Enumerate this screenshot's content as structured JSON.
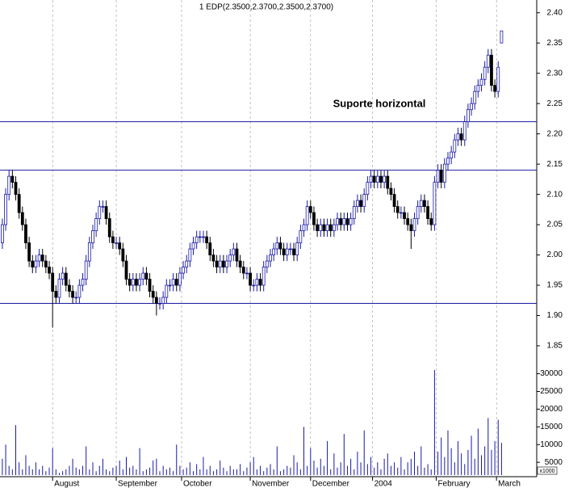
{
  "chart_data": {
    "type": "candlestick",
    "title": "1 EDP(2.3500,2.3700,2.3500,2.3700)",
    "annotation": "Suporte horizontal",
    "volume_unit": "x1000",
    "up_color": "#ffffff",
    "down_color": "#000000",
    "outline_color": "#1a1aa6",
    "line_color": "#1a1aa6",
    "annotation_color": "#1a1acc",
    "horizontal_lines": [
      1.92,
      2.14,
      2.22
    ],
    "xlim": [
      -0.7,
      159.5
    ],
    "xticks": [
      {
        "value": 15,
        "label": "August"
      },
      {
        "value": 34,
        "label": "September"
      },
      {
        "value": 53.5,
        "label": "October"
      },
      {
        "value": 74,
        "label": "November"
      },
      {
        "value": 92,
        "label": "December"
      },
      {
        "value": 110.5,
        "label": "2004"
      },
      {
        "value": 129.5,
        "label": "February"
      },
      {
        "value": 147.5,
        "label": "March"
      }
    ],
    "grid": true,
    "ylim": [
      1.834,
      2.421
    ],
    "yticks": [
      1.85,
      {
        "value": 1.9,
        "label": "1.90"
      },
      1.95,
      {
        "value": 2.0,
        "label": "2.00"
      },
      2.05,
      {
        "value": 2.1,
        "label": "2.10"
      },
      2.15,
      {
        "value": 2.2,
        "label": "2.20"
      },
      2.25,
      {
        "value": 2.3,
        "label": "2.30"
      },
      2.35,
      {
        "value": 2.4,
        "label": "2.40"
      }
    ],
    "volume_ylim": [
      1400,
      34000
    ],
    "volume_yticks": [
      5000,
      10000,
      15000,
      20000,
      25000,
      30000
    ],
    "open": [
      2.02,
      2.05,
      2.1,
      2.13,
      2.12,
      2.1,
      2.07,
      2.05,
      2.02,
      1.99,
      1.98,
      1.99,
      2.0,
      1.99,
      1.98,
      1.97,
      1.94,
      1.93,
      1.96,
      1.97,
      1.95,
      1.94,
      1.93,
      1.93,
      1.95,
      1.96,
      1.99,
      2.02,
      2.04,
      2.06,
      2.08,
      2.08,
      2.06,
      2.03,
      2.02,
      2.02,
      2.01,
      1.99,
      1.96,
      1.95,
      1.96,
      1.95,
      1.96,
      1.97,
      1.96,
      1.94,
      1.93,
      1.92,
      1.92,
      1.93,
      1.95,
      1.95,
      1.96,
      1.95,
      1.97,
      1.98,
      1.99,
      2.01,
      2.02,
      2.03,
      2.03,
      2.03,
      2.02,
      2.0,
      1.99,
      1.98,
      1.99,
      1.98,
      1.99,
      2.0,
      2.01,
      1.99,
      1.98,
      1.97,
      1.97,
      1.95,
      1.95,
      1.96,
      1.95,
      1.98,
      1.99,
      2.0,
      2.01,
      2.02,
      2.01,
      2.0,
      2.01,
      2.01,
      2.0,
      2.02,
      2.04,
      2.05,
      2.08,
      2.07,
      2.05,
      2.04,
      2.05,
      2.04,
      2.05,
      2.04,
      2.05,
      2.06,
      2.05,
      2.06,
      2.05,
      2.06,
      2.08,
      2.09,
      2.08,
      2.1,
      2.12,
      2.13,
      2.12,
      2.13,
      2.12,
      2.13,
      2.11,
      2.1,
      2.08,
      2.07,
      2.07,
      2.06,
      2.05,
      2.04,
      2.06,
      2.08,
      2.09,
      2.08,
      2.06,
      2.05,
      2.12,
      2.14,
      2.12,
      2.15,
      2.16,
      2.17,
      2.19,
      2.2,
      2.19,
      2.22,
      2.24,
      2.25,
      2.27,
      2.28,
      2.29,
      2.31,
      2.33,
      2.28,
      2.27,
      2.35
    ],
    "high": [
      2.06,
      2.11,
      2.14,
      2.14,
      2.13,
      2.11,
      2.08,
      2.06,
      2.03,
      2.0,
      2.0,
      2.01,
      2.01,
      2.0,
      1.99,
      1.98,
      1.95,
      1.97,
      1.98,
      1.98,
      1.96,
      1.95,
      1.94,
      1.96,
      1.97,
      2.0,
      2.03,
      2.05,
      2.07,
      2.09,
      2.09,
      2.09,
      2.07,
      2.04,
      2.03,
      2.03,
      2.02,
      2.0,
      1.97,
      1.97,
      1.97,
      1.97,
      1.98,
      1.98,
      1.97,
      1.95,
      1.94,
      1.93,
      1.94,
      1.96,
      1.96,
      1.97,
      1.97,
      1.98,
      1.99,
      2.0,
      2.02,
      2.03,
      2.04,
      2.04,
      2.04,
      2.04,
      2.03,
      2.01,
      2.0,
      2.0,
      2.0,
      2.0,
      2.01,
      2.02,
      2.02,
      2.0,
      1.99,
      1.98,
      1.98,
      1.96,
      1.97,
      1.97,
      1.99,
      2.0,
      2.01,
      2.02,
      2.03,
      2.03,
      2.02,
      2.02,
      2.02,
      2.02,
      2.03,
      2.05,
      2.06,
      2.09,
      2.09,
      2.08,
      2.06,
      2.06,
      2.06,
      2.06,
      2.06,
      2.06,
      2.07,
      2.07,
      2.07,
      2.07,
      2.07,
      2.09,
      2.1,
      2.1,
      2.11,
      2.13,
      2.14,
      2.14,
      2.14,
      2.14,
      2.14,
      2.14,
      2.12,
      2.11,
      2.09,
      2.08,
      2.08,
      2.07,
      2.06,
      2.07,
      2.09,
      2.1,
      2.1,
      2.09,
      2.07,
      2.13,
      2.15,
      2.15,
      2.16,
      2.17,
      2.18,
      2.2,
      2.21,
      2.21,
      2.23,
      2.25,
      2.26,
      2.28,
      2.29,
      2.3,
      2.32,
      2.34,
      2.34,
      2.29,
      2.32,
      2.37
    ],
    "low": [
      2.01,
      2.04,
      2.09,
      2.11,
      2.09,
      2.06,
      2.04,
      2.01,
      1.98,
      1.97,
      1.97,
      1.98,
      1.98,
      1.97,
      1.96,
      1.88,
      1.92,
      1.92,
      1.95,
      1.94,
      1.93,
      1.92,
      1.92,
      1.92,
      1.94,
      1.95,
      1.98,
      2.01,
      2.03,
      2.05,
      2.07,
      2.05,
      2.02,
      2.01,
      2.01,
      2.0,
      1.98,
      1.95,
      1.94,
      1.94,
      1.94,
      1.94,
      1.95,
      1.95,
      1.93,
      1.92,
      1.9,
      1.91,
      1.91,
      1.92,
      1.94,
      1.94,
      1.94,
      1.94,
      1.96,
      1.97,
      1.98,
      2.0,
      2.01,
      2.02,
      2.02,
      2.01,
      1.99,
      1.98,
      1.97,
      1.97,
      1.97,
      1.97,
      1.98,
      1.99,
      1.98,
      1.97,
      1.96,
      1.96,
      1.94,
      1.94,
      1.94,
      1.94,
      1.94,
      1.97,
      1.98,
      1.99,
      2.0,
      2.0,
      1.99,
      1.99,
      2.0,
      1.99,
      1.99,
      2.01,
      2.03,
      2.04,
      2.06,
      2.04,
      2.03,
      2.03,
      2.03,
      2.03,
      2.03,
      2.03,
      2.04,
      2.04,
      2.04,
      2.04,
      2.04,
      2.05,
      2.07,
      2.07,
      2.07,
      2.09,
      2.11,
      2.11,
      2.11,
      2.11,
      2.11,
      2.1,
      2.09,
      2.07,
      2.06,
      2.06,
      2.05,
      2.04,
      2.01,
      2.03,
      2.05,
      2.07,
      2.07,
      2.05,
      2.04,
      2.04,
      2.11,
      2.11,
      2.11,
      2.14,
      2.15,
      2.16,
      2.18,
      2.18,
      2.18,
      2.21,
      2.23,
      2.24,
      2.26,
      2.27,
      2.28,
      2.3,
      2.27,
      2.26,
      2.26,
      2.35
    ],
    "close": [
      2.05,
      2.1,
      2.13,
      2.12,
      2.1,
      2.07,
      2.05,
      2.02,
      1.99,
      1.98,
      1.99,
      2.0,
      1.99,
      1.98,
      1.97,
      1.94,
      1.93,
      1.96,
      1.97,
      1.95,
      1.94,
      1.93,
      1.93,
      1.95,
      1.96,
      1.99,
      2.02,
      2.04,
      2.06,
      2.08,
      2.08,
      2.06,
      2.03,
      2.02,
      2.02,
      2.01,
      1.99,
      1.96,
      1.95,
      1.96,
      1.95,
      1.96,
      1.97,
      1.96,
      1.94,
      1.93,
      1.92,
      1.92,
      1.93,
      1.95,
      1.95,
      1.96,
      1.95,
      1.97,
      1.98,
      1.99,
      2.01,
      2.02,
      2.03,
      2.03,
      2.03,
      2.02,
      2.0,
      1.99,
      1.98,
      1.99,
      1.98,
      1.99,
      2.0,
      2.01,
      1.99,
      1.98,
      1.97,
      1.97,
      1.95,
      1.95,
      1.96,
      1.95,
      1.98,
      1.99,
      2.0,
      2.01,
      2.02,
      2.01,
      2.0,
      2.01,
      2.01,
      2.0,
      2.02,
      2.04,
      2.05,
      2.08,
      2.07,
      2.05,
      2.04,
      2.05,
      2.04,
      2.05,
      2.04,
      2.05,
      2.06,
      2.05,
      2.06,
      2.05,
      2.06,
      2.08,
      2.09,
      2.08,
      2.1,
      2.12,
      2.13,
      2.12,
      2.13,
      2.12,
      2.13,
      2.11,
      2.1,
      2.08,
      2.07,
      2.07,
      2.06,
      2.05,
      2.04,
      2.06,
      2.08,
      2.09,
      2.08,
      2.06,
      2.05,
      2.12,
      2.14,
      2.12,
      2.15,
      2.16,
      2.17,
      2.19,
      2.2,
      2.19,
      2.22,
      2.24,
      2.25,
      2.27,
      2.28,
      2.29,
      2.31,
      2.33,
      2.28,
      2.27,
      2.31,
      2.37
    ],
    "volume": [
      6000,
      10000,
      4000,
      3000,
      15500,
      5000,
      3000,
      7000,
      4000,
      3000,
      5000,
      3000,
      4000,
      2500,
      3500,
      9000,
      3000,
      2000,
      2500,
      3000,
      4000,
      6000,
      3500,
      3000,
      4000,
      9500,
      3000,
      5000,
      2500,
      4000,
      6000,
      3000,
      2500,
      3500,
      4000,
      5500,
      3000,
      6500,
      3500,
      4000,
      3000,
      9000,
      2500,
      3000,
      3500,
      5500,
      6000,
      2500,
      4000,
      3000,
      3500,
      2500,
      10000,
      4000,
      3000,
      3500,
      5000,
      2500,
      4500,
      3000,
      6500,
      3000,
      4000,
      2500,
      3000,
      5500,
      3500,
      2500,
      4000,
      3000,
      3000,
      4500,
      2500,
      3500,
      5000,
      6500,
      3000,
      4000,
      2500,
      3500,
      4500,
      3000,
      9500,
      2500,
      3000,
      4000,
      3500,
      7000,
      5000,
      3000,
      15000,
      4000,
      9000,
      5500,
      3500,
      6000,
      4000,
      11000,
      3000,
      7500,
      3500,
      5000,
      13000,
      4000,
      6000,
      3000,
      8000,
      5000,
      14000,
      4500,
      6500,
      3500,
      5000,
      3000,
      6000,
      7500,
      4000,
      5000,
      3500,
      6500,
      3000,
      5000,
      6000,
      8000,
      4000,
      9500,
      3500,
      4500,
      3000,
      31000,
      8000,
      12000,
      6500,
      14000,
      9000,
      5000,
      11000,
      7500,
      4500,
      8500,
      12500,
      6000,
      14500,
      7000,
      9500,
      17500,
      8500,
      11000,
      17000,
      10500
    ]
  }
}
